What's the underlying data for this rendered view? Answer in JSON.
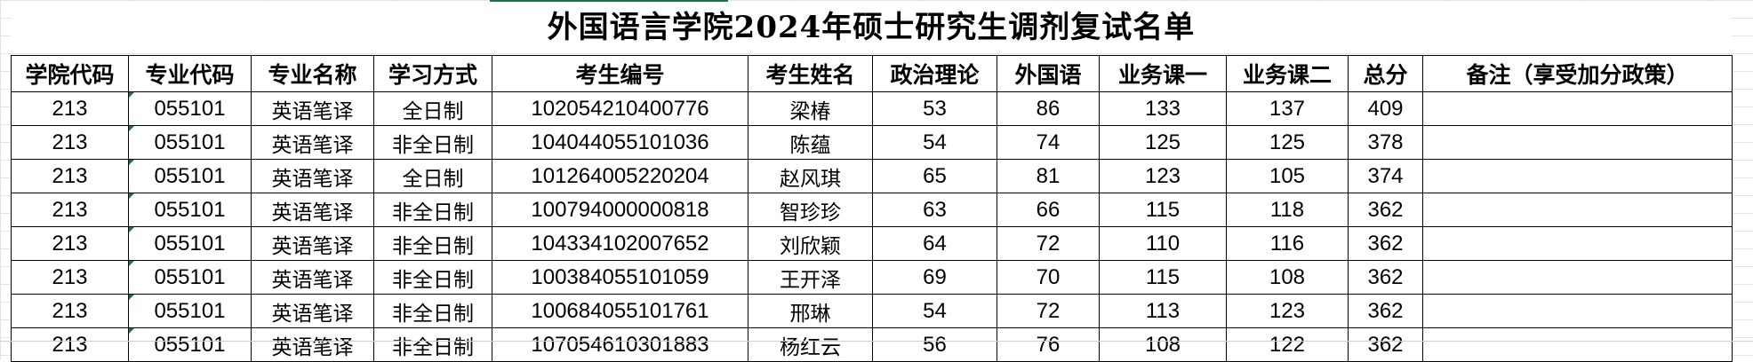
{
  "title": "外国语言学院2024年硕士研究生调剂复试名单",
  "accent_color": "#1e7145",
  "columns": [
    "学院代码",
    "专业代码",
    "专业名称",
    "学习方式",
    "考生编号",
    "考生姓名",
    "政治理论",
    "外国语",
    "业务课一",
    "业务课二",
    "总分",
    "备注（享受加分政策）"
  ],
  "rows": [
    {
      "college_code": "213",
      "major_code": "055101",
      "major_name": "英语笔译",
      "study_mode": "全日制",
      "candidate_id": "102054210400776",
      "name": "梁椿",
      "politics": "53",
      "foreign_language": "86",
      "course1": "133",
      "course2": "137",
      "total": "409",
      "note": ""
    },
    {
      "college_code": "213",
      "major_code": "055101",
      "major_name": "英语笔译",
      "study_mode": "非全日制",
      "candidate_id": "104044055101036",
      "name": "陈蕴",
      "politics": "54",
      "foreign_language": "74",
      "course1": "125",
      "course2": "125",
      "total": "378",
      "note": ""
    },
    {
      "college_code": "213",
      "major_code": "055101",
      "major_name": "英语笔译",
      "study_mode": "全日制",
      "candidate_id": "101264005220204",
      "name": "赵风琪",
      "politics": "65",
      "foreign_language": "81",
      "course1": "123",
      "course2": "105",
      "total": "374",
      "note": ""
    },
    {
      "college_code": "213",
      "major_code": "055101",
      "major_name": "英语笔译",
      "study_mode": "非全日制",
      "candidate_id": "100794000000818",
      "name": "智珍珍",
      "politics": "63",
      "foreign_language": "66",
      "course1": "115",
      "course2": "118",
      "total": "362",
      "note": ""
    },
    {
      "college_code": "213",
      "major_code": "055101",
      "major_name": "英语笔译",
      "study_mode": "非全日制",
      "candidate_id": "104334102007652",
      "name": "刘欣颖",
      "politics": "64",
      "foreign_language": "72",
      "course1": "110",
      "course2": "116",
      "total": "362",
      "note": ""
    },
    {
      "college_code": "213",
      "major_code": "055101",
      "major_name": "英语笔译",
      "study_mode": "非全日制",
      "candidate_id": "100384055101059",
      "name": "王开泽",
      "politics": "69",
      "foreign_language": "70",
      "course1": "115",
      "course2": "108",
      "total": "362",
      "note": ""
    },
    {
      "college_code": "213",
      "major_code": "055101",
      "major_name": "英语笔译",
      "study_mode": "非全日制",
      "candidate_id": "100684055101761",
      "name": "邢琳",
      "politics": "54",
      "foreign_language": "72",
      "course1": "113",
      "course2": "123",
      "total": "362",
      "note": ""
    },
    {
      "college_code": "213",
      "major_code": "055101",
      "major_name": "英语笔译",
      "study_mode": "非全日制",
      "candidate_id": "107054610301883",
      "name": "杨红云",
      "politics": "56",
      "foreign_language": "76",
      "course1": "108",
      "course2": "122",
      "total": "362",
      "note": ""
    }
  ]
}
